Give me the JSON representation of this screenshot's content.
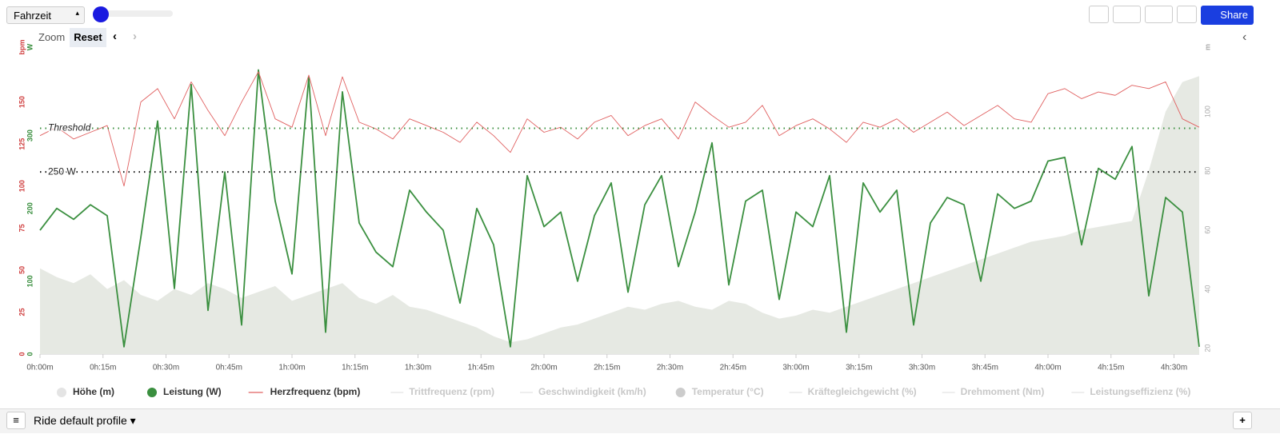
{
  "toolbar": {
    "metric_select": "Fahrzeit",
    "zoom": "Zoom",
    "reset": "Reset",
    "share": "Share"
  },
  "footer": {
    "profile": "Ride default profile"
  },
  "chart_data": {
    "type": "line",
    "x": [
      0,
      4,
      8,
      12,
      16,
      20,
      24,
      28,
      32,
      36,
      40,
      44,
      48,
      52,
      56,
      60,
      64,
      68,
      72,
      76,
      80,
      84,
      88,
      92,
      96,
      100,
      104,
      108,
      112,
      116,
      120,
      124,
      128,
      132,
      136,
      140,
      144,
      148,
      152,
      156,
      160,
      164,
      168,
      172,
      176,
      180,
      184,
      188,
      192,
      196,
      200,
      204,
      208,
      212,
      216,
      220,
      224,
      228,
      232,
      236,
      240,
      244,
      248,
      252,
      256,
      260,
      264,
      268,
      272,
      276
    ],
    "xlim": [
      0,
      276
    ],
    "xticks": [
      {
        "value": 0,
        "label": "0h:00m"
      },
      {
        "value": 15,
        "label": "0h:15m"
      },
      {
        "value": 30,
        "label": "0h:30m"
      },
      {
        "value": 45,
        "label": "0h:45m"
      },
      {
        "value": 60,
        "label": "1h:00m"
      },
      {
        "value": 75,
        "label": "1h:15m"
      },
      {
        "value": 90,
        "label": "1h:30m"
      },
      {
        "value": 105,
        "label": "1h:45m"
      },
      {
        "value": 120,
        "label": "2h:00m"
      },
      {
        "value": 135,
        "label": "2h:15m"
      },
      {
        "value": 150,
        "label": "2h:30m"
      },
      {
        "value": 165,
        "label": "2h:45m"
      },
      {
        "value": 180,
        "label": "3h:00m"
      },
      {
        "value": 195,
        "label": "3h:15m"
      },
      {
        "value": 210,
        "label": "3h:30m"
      },
      {
        "value": 225,
        "label": "3h:45m"
      },
      {
        "value": 240,
        "label": "4h:00m"
      },
      {
        "value": 255,
        "label": "4h:15m"
      },
      {
        "value": 270,
        "label": "4h:30m"
      }
    ],
    "axes": [
      {
        "unit": "W",
        "color": "#3a8f3f",
        "lim": [
          0,
          406
        ],
        "ticks": [
          0,
          100,
          200,
          300
        ]
      },
      {
        "unit": "bpm",
        "color": "#d04040",
        "lim": [
          0,
          176
        ],
        "ticks": [
          0,
          25,
          50,
          75,
          100,
          125,
          150
        ]
      },
      {
        "unit": "m",
        "color": "#aaaaaa",
        "lim": [
          18,
          118
        ],
        "ticks": [
          20,
          40,
          60,
          80,
          100
        ]
      }
    ],
    "series": [
      {
        "name": "Höhe (m)",
        "color": "#e6e9e3",
        "axis": 2,
        "style": "area",
        "values": [
          47,
          44,
          42,
          45,
          40,
          43,
          38,
          36,
          40,
          38,
          42,
          40,
          37,
          39,
          41,
          36,
          38,
          40,
          42,
          37,
          35,
          38,
          34,
          33,
          31,
          29,
          27,
          24,
          22,
          23,
          25,
          27,
          28,
          30,
          32,
          34,
          33,
          35,
          36,
          34,
          33,
          36,
          35,
          32,
          30,
          31,
          33,
          32,
          34,
          36,
          38,
          40,
          42,
          44,
          46,
          48,
          50,
          52,
          54,
          56,
          57,
          58,
          60,
          61,
          62,
          63,
          80,
          100,
          110,
          112
        ]
      },
      {
        "name": "Leistung (W)",
        "color": "#3a8f3f",
        "axis": 0,
        "style": "line",
        "values": [
          170,
          200,
          185,
          205,
          190,
          10,
          160,
          320,
          90,
          370,
          60,
          250,
          40,
          390,
          210,
          110,
          380,
          30,
          360,
          180,
          140,
          120,
          225,
          195,
          170,
          70,
          200,
          150,
          10,
          245,
          175,
          195,
          100,
          190,
          235,
          85,
          205,
          245,
          120,
          195,
          290,
          95,
          210,
          225,
          75,
          195,
          175,
          245,
          30,
          235,
          195,
          225,
          40,
          180,
          215,
          205,
          100,
          220,
          200,
          210,
          265,
          270,
          150,
          255,
          240,
          285,
          80,
          215,
          195,
          10
        ]
      },
      {
        "name": "Herzfrequenz (bpm)",
        "color": "#e06060",
        "axis": 1,
        "style": "thin",
        "values": [
          130,
          135,
          128,
          132,
          136,
          100,
          150,
          158,
          140,
          162,
          145,
          130,
          150,
          168,
          140,
          135,
          166,
          130,
          165,
          138,
          134,
          128,
          140,
          136,
          132,
          126,
          138,
          130,
          120,
          140,
          132,
          135,
          128,
          138,
          142,
          130,
          136,
          140,
          128,
          150,
          142,
          135,
          138,
          148,
          130,
          136,
          140,
          134,
          126,
          138,
          135,
          140,
          132,
          138,
          144,
          136,
          142,
          148,
          140,
          138,
          155,
          158,
          152,
          156,
          154,
          160,
          158,
          162,
          140,
          135
        ]
      }
    ],
    "hidden_series": [
      "Trittfrequenz (rpm)",
      "Geschwindigkeit (km/h)",
      "Temperatur (°C)",
      "Kräftegleichgewicht (%)",
      "Drehmoment (Nm)",
      "Leistungseffizienz (%)"
    ],
    "thresholds": [
      {
        "label": "Threshold",
        "value": 310,
        "color": "#3a8f3f"
      },
      {
        "label": "250 W",
        "value": 250,
        "color": "#111111"
      }
    ]
  }
}
